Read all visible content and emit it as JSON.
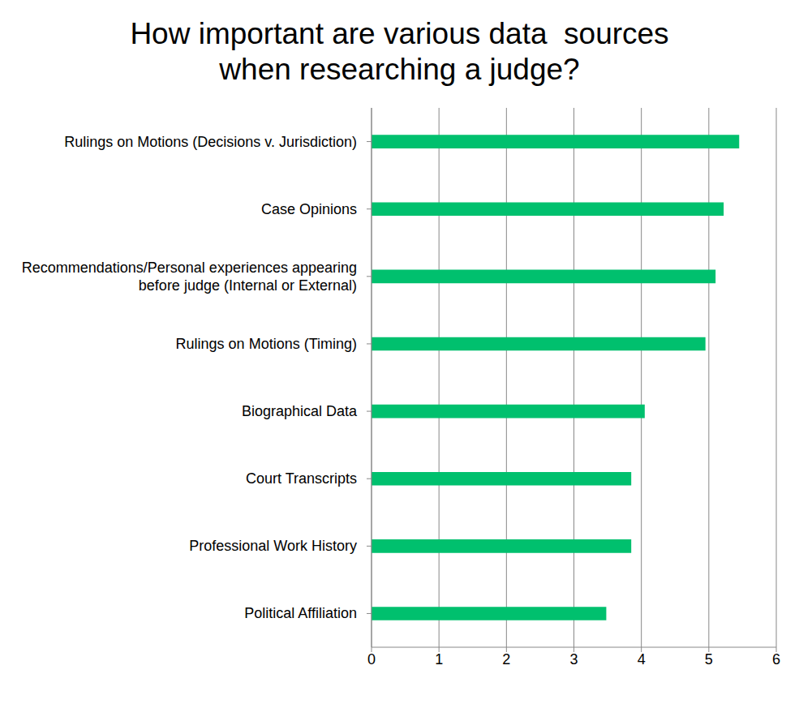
{
  "chart_data": {
    "type": "bar",
    "title": "How important are various data  sources when researching a judge?",
    "orientation": "horizontal",
    "categories": [
      "Rulings on Motions (Decisions v. Jurisdiction)",
      "Case Opinions",
      "Recommendations/Personal experiences appearing before judge (Internal or External)",
      "Rulings on Motions (Timing)",
      "Biographical Data",
      "Court Transcripts",
      "Professional Work History",
      "Political Affiliation"
    ],
    "values": [
      5.45,
      5.22,
      5.1,
      4.95,
      4.05,
      3.85,
      3.85,
      3.48
    ],
    "color": "#00c06e",
    "xlim": [
      0,
      6
    ],
    "xticks": [
      0,
      1,
      2,
      3,
      4,
      5,
      6
    ],
    "grid": true
  }
}
